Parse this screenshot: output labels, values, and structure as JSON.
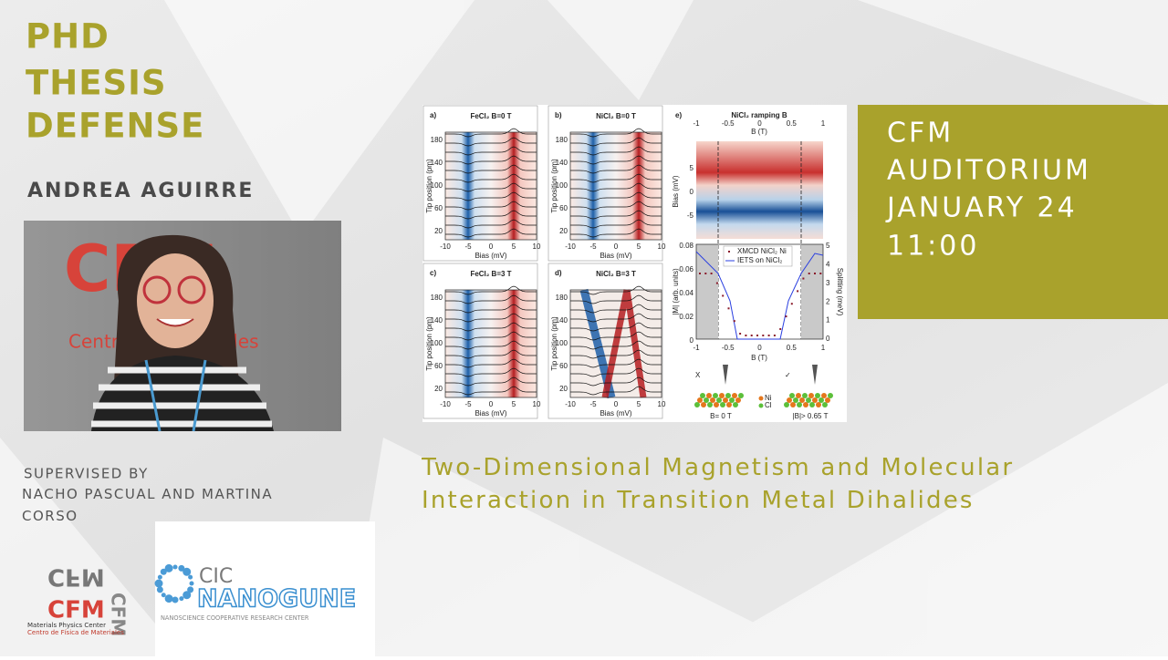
{
  "header": {
    "title_lines": [
      "PHD",
      "THESIS",
      "DEFENSE"
    ],
    "name": "ANDREA AGUIRRE"
  },
  "photo": {
    "sign": "CFM",
    "sign_caption": "Centro de Materiales"
  },
  "venue": {
    "lines": [
      "CFM",
      "AUDITORIUM",
      "JANUARY 24",
      "11:00"
    ]
  },
  "supervision": {
    "label": "SUPERVISED BY",
    "names": "NACHO PASCUAL AND MARTINA CORSO"
  },
  "thesis_title": "Two-Dimensional Magnetism and Molecular Interaction in Transition Metal Dihalides",
  "figure": {
    "panels": [
      {
        "label": "a)",
        "title": "FeCl₂ B=0 T"
      },
      {
        "label": "b)",
        "title": "NiCl₂ B=0 T"
      },
      {
        "label": "c)",
        "title": "FeCl₂ B=3 T"
      },
      {
        "label": "d)",
        "title": "NiCl₂ B=3 T"
      }
    ],
    "y_ticks": [
      "20",
      "60",
      "100",
      "140",
      "180"
    ],
    "x_ticks": [
      "-10",
      "-5",
      "0",
      "5",
      "10"
    ],
    "y_label": "Tip position (pm)",
    "x_label": "Bias (mV)",
    "e": {
      "label": "e)",
      "title": "NiCl₂ ramping B",
      "b_label": "B (T)",
      "b_ticks": [
        "-1",
        "-0.5",
        "0",
        "0.5",
        "1"
      ],
      "bias_label": "Bias (mV)",
      "bias_ticks": [
        "5",
        "0",
        "-5"
      ],
      "m_label": "|M| (arb. units)",
      "m_ticks": [
        "0.08",
        "0.06",
        "0.04",
        "0.02",
        "0"
      ],
      "split_label": "Splitting (meV)",
      "split_ticks": [
        "5",
        "4",
        "3",
        "2",
        "1",
        "0"
      ],
      "legend": [
        "XMCD NiCl₂ Ni",
        "IETS on NiCl₂"
      ],
      "states": [
        "B= 0 T",
        "|B|> 0.65 T"
      ],
      "marks": [
        "X",
        "✓"
      ],
      "atoms": [
        "Ni",
        "Cl"
      ]
    }
  },
  "logos": {
    "cfm": {
      "name": "CFM",
      "line1": "Materials Physics Center",
      "line2": "Centro de Física de Materiales"
    },
    "nanogune": {
      "prefix": "CIC",
      "name": "NANOGUNE",
      "tagline": "NANOSCIENCE COOPERATIVE RESEARCH CENTER"
    }
  }
}
